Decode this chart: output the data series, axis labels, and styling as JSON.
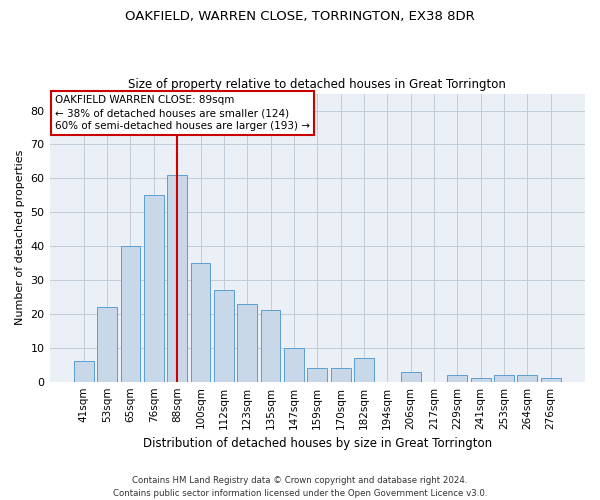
{
  "title1": "OAKFIELD, WARREN CLOSE, TORRINGTON, EX38 8DR",
  "title2": "Size of property relative to detached houses in Great Torrington",
  "xlabel": "Distribution of detached houses by size in Great Torrington",
  "ylabel": "Number of detached properties",
  "footer1": "Contains HM Land Registry data © Crown copyright and database right 2024.",
  "footer2": "Contains public sector information licensed under the Open Government Licence v3.0.",
  "categories": [
    "41sqm",
    "53sqm",
    "65sqm",
    "76sqm",
    "88sqm",
    "100sqm",
    "112sqm",
    "123sqm",
    "135sqm",
    "147sqm",
    "159sqm",
    "170sqm",
    "182sqm",
    "194sqm",
    "206sqm",
    "217sqm",
    "229sqm",
    "241sqm",
    "253sqm",
    "264sqm",
    "276sqm"
  ],
  "values": [
    6,
    22,
    40,
    55,
    61,
    35,
    27,
    23,
    21,
    10,
    4,
    4,
    7,
    0,
    3,
    0,
    2,
    1,
    2,
    2,
    1
  ],
  "bar_color": "#c8d8e8",
  "bar_edge_color": "#5a9fd4",
  "vline_x_index": 4,
  "vline_color": "#cc0000",
  "annotation_text": "OAKFIELD WARREN CLOSE: 89sqm\n← 38% of detached houses are smaller (124)\n60% of semi-detached houses are larger (193) →",
  "annotation_box_color": "#ffffff",
  "annotation_box_edge": "#cc0000",
  "ylim": [
    0,
    85
  ],
  "yticks": [
    0,
    10,
    20,
    30,
    40,
    50,
    60,
    70,
    80
  ],
  "grid_color": "#c0ccd8",
  "background_color": "#eaf0f6",
  "title1_fontsize": 9.5,
  "title2_fontsize": 8.5,
  "ylabel_fontsize": 8,
  "xlabel_fontsize": 8.5,
  "tick_fontsize": 7.5,
  "ytick_fontsize": 8,
  "annotation_fontsize": 7.5,
  "footer_fontsize": 6.2
}
